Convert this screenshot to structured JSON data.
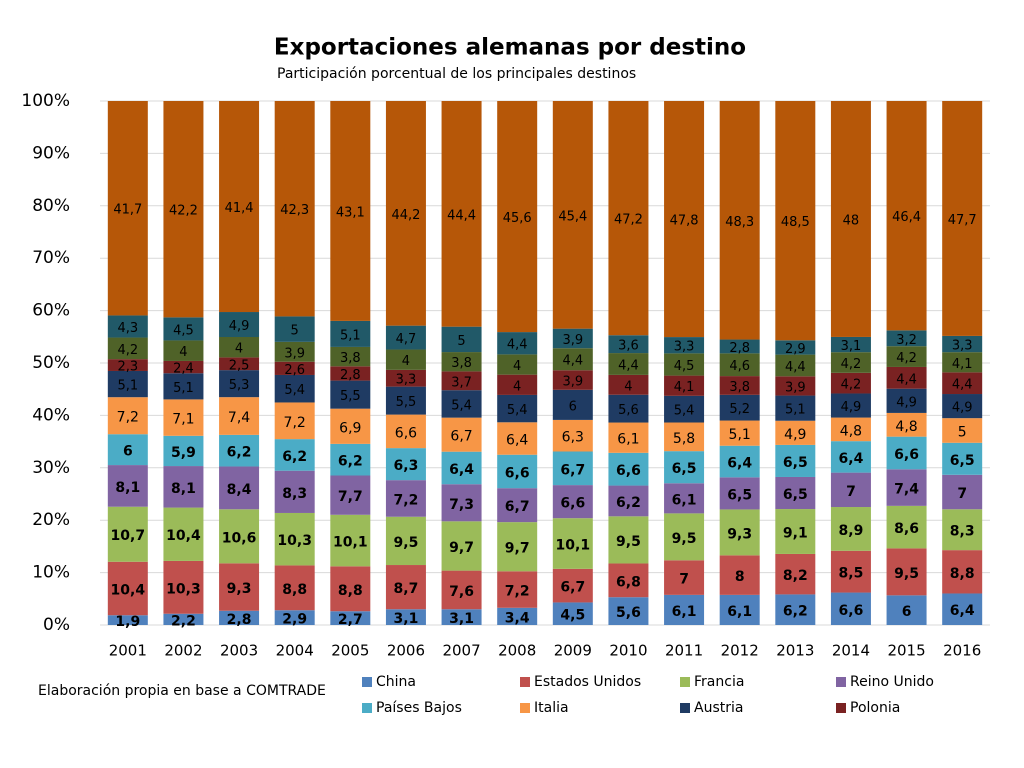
{
  "chart_data": {
    "type": "bar",
    "stacking": "percent",
    "title": "Exportaciones alemanas por destino",
    "subtitle": "Participación porcentual de los principales destinos",
    "note": "Elaboración propia en base a COMTRADE",
    "categories": [
      "2001",
      "2002",
      "2003",
      "2004",
      "2005",
      "2006",
      "2007",
      "2008",
      "2009",
      "2010",
      "2011",
      "2012",
      "2013",
      "2014",
      "2015",
      "2016"
    ],
    "ylim": [
      0,
      100
    ],
    "yticks": [
      {
        "value": 0,
        "label": "0%"
      },
      {
        "value": 10,
        "label": "10%"
      },
      {
        "value": 20,
        "label": "20%"
      },
      {
        "value": 30,
        "label": "30%"
      },
      {
        "value": 40,
        "label": "40%"
      },
      {
        "value": 50,
        "label": "50%"
      },
      {
        "value": 60,
        "label": "60%"
      },
      {
        "value": 70,
        "label": "70%"
      },
      {
        "value": 80,
        "label": "80%"
      },
      {
        "value": 90,
        "label": "90%"
      },
      {
        "value": 100,
        "label": "100%"
      }
    ],
    "grid": true,
    "series": [
      {
        "name": "China",
        "color": "#4f81bd",
        "values": [
          1.9,
          2.2,
          2.8,
          2.9,
          2.7,
          3.1,
          3.1,
          3.4,
          4.5,
          5.6,
          6.1,
          6.1,
          6.2,
          6.6,
          6,
          6.4
        ],
        "value_labels": [
          "1,9",
          "2,2",
          "2,8",
          "2,9",
          "2,7",
          "3,1",
          "3,1",
          "3,4",
          "4,5",
          "5,6",
          "6,1",
          "6,1",
          "6,2",
          "6,6",
          "6",
          "6,4"
        ]
      },
      {
        "name": "Estados Unidos",
        "color": "#c0504d",
        "values": [
          10.4,
          10.3,
          9.3,
          8.8,
          8.8,
          8.7,
          7.6,
          7.2,
          6.7,
          6.8,
          7,
          8,
          8.2,
          8.5,
          9.5,
          8.8
        ],
        "value_labels": [
          "10,4",
          "10,3",
          "9,3",
          "8,8",
          "8,8",
          "8,7",
          "7,6",
          "7,2",
          "6,7",
          "6,8",
          "7",
          "8",
          "8,2",
          "8,5",
          "9,5",
          "8,8"
        ]
      },
      {
        "name": "Francia",
        "color": "#9bbb59",
        "values": [
          10.7,
          10.4,
          10.6,
          10.3,
          10.1,
          9.5,
          9.7,
          9.7,
          10.1,
          9.5,
          9.5,
          9.3,
          9.1,
          8.9,
          8.6,
          8.3
        ],
        "value_labels": [
          "10,7",
          "10,4",
          "10,6",
          "10,3",
          "10,1",
          "9,5",
          "9,7",
          "9,7",
          "10,1",
          "9,5",
          "9,5",
          "9,3",
          "9,1",
          "8,9",
          "8,6",
          "8,3"
        ]
      },
      {
        "name": "Reino Unido",
        "color": "#8064a2",
        "values": [
          8.1,
          8.1,
          8.4,
          8.3,
          7.7,
          7.2,
          7.3,
          6.7,
          6.6,
          6.2,
          6.1,
          6.5,
          6.5,
          7,
          7.4,
          7
        ],
        "value_labels": [
          "8,1",
          "8,1",
          "8,4",
          "8,3",
          "7,7",
          "7,2",
          "7,3",
          "6,7",
          "6,6",
          "6,2",
          "6,1",
          "6,5",
          "6,5",
          "7",
          "7,4",
          "7"
        ]
      },
      {
        "name": "Países Bajos",
        "color": "#4bacc6",
        "values": [
          6,
          5.9,
          6.2,
          6.2,
          6.2,
          6.3,
          6.4,
          6.6,
          6.7,
          6.6,
          6.5,
          6.4,
          6.5,
          6.4,
          6.6,
          6.5
        ],
        "value_labels": [
          "6",
          "5,9",
          "6,2",
          "6,2",
          "6,2",
          "6,3",
          "6,4",
          "6,6",
          "6,7",
          "6,6",
          "6,5",
          "6,4",
          "6,5",
          "6,4",
          "6,6",
          "6,5"
        ]
      },
      {
        "name": "Italia",
        "color": "#f79646",
        "values": [
          7.2,
          7.1,
          7.4,
          7.2,
          6.9,
          6.6,
          6.7,
          6.4,
          6.3,
          6.1,
          5.8,
          5.1,
          4.9,
          4.8,
          4.8,
          5
        ],
        "value_labels": [
          "7,2",
          "7,1",
          "7,4",
          "7,2",
          "6,9",
          "6,6",
          "6,7",
          "6,4",
          "6,3",
          "6,1",
          "5,8",
          "5,1",
          "4,9",
          "4,8",
          "4,8",
          "5"
        ]
      },
      {
        "name": "Austria",
        "color": "#1f3b63",
        "values": [
          5.1,
          5.1,
          5.3,
          5.4,
          5.5,
          5.5,
          5.4,
          5.4,
          6,
          5.6,
          5.4,
          5.2,
          5.1,
          4.9,
          4.9,
          4.9
        ],
        "value_labels": [
          "5,1",
          "5,1",
          "5,3",
          "5,4",
          "5,5",
          "5,5",
          "5,4",
          "5,4",
          "6",
          "5,6",
          "5,4",
          "5,2",
          "5,1",
          "4,9",
          "4,9",
          "4,9"
        ]
      },
      {
        "name": "Polonia",
        "color": "#7a2222",
        "values": [
          2.3,
          2.4,
          2.5,
          2.6,
          2.8,
          3.3,
          3.7,
          4,
          3.9,
          4,
          4.1,
          3.8,
          3.9,
          4.2,
          4.4,
          4.4
        ],
        "value_labels": [
          "2,3",
          "2,4",
          "2,5",
          "2,6",
          "2,8",
          "3,3",
          "3,7",
          "4",
          "3,9",
          "4",
          "4,1",
          "3,8",
          "3,9",
          "4,2",
          "4,4",
          "4,4"
        ]
      },
      {
        "color": "#4f6228",
        "values": [
          4.2,
          4,
          4,
          3.9,
          3.8,
          4,
          3.8,
          4,
          4.4,
          4.4,
          4.5,
          4.6,
          4.4,
          4.2,
          4.2,
          4.1
        ],
        "value_labels": [
          "4,2",
          "4",
          "4",
          "3,9",
          "3,8",
          "4",
          "3,8",
          "4",
          "4,4",
          "4,4",
          "4,5",
          "4,6",
          "4,4",
          "4,2",
          "4,2",
          "4,1"
        ]
      },
      {
        "color": "#215968",
        "values": [
          4.3,
          4.5,
          4.9,
          5,
          5.1,
          4.7,
          5,
          4.4,
          3.9,
          3.6,
          3.3,
          2.8,
          2.9,
          3.1,
          3.2,
          3.3
        ],
        "value_labels": [
          "4,3",
          "4,5",
          "4,9",
          "5",
          "5,1",
          "4,7",
          "5",
          "4,4",
          "3,9",
          "3,6",
          "3,3",
          "2,8",
          "2,9",
          "3,1",
          "3,2",
          "3,3"
        ]
      },
      {
        "color": "#b65708",
        "values": [
          41.7,
          42.2,
          41.4,
          42.3,
          43.1,
          44.2,
          44.4,
          45.6,
          45.4,
          47.2,
          47.8,
          48.3,
          48.5,
          48,
          46.4,
          47.7
        ],
        "value_labels": [
          "41,7",
          "42,2",
          "41,4",
          "42,3",
          "43,1",
          "44,2",
          "44,4",
          "45,6",
          "45,4",
          "47,2",
          "47,8",
          "48,3",
          "48,5",
          "48",
          "46,4",
          "47,7"
        ]
      }
    ]
  }
}
